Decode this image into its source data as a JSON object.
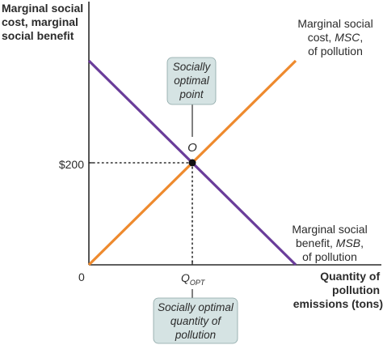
{
  "chart_data": {
    "type": "line",
    "ylabel": [
      "Marginal social",
      "cost, marginal",
      "social benefit"
    ],
    "xlabel": [
      "Quantity of",
      "pollution",
      "emissions (tons)"
    ],
    "origin_label": "0",
    "y_tick_label": "$200",
    "y_tick_value": 200,
    "x_tick_label_main": "Q",
    "x_tick_label_sub": "OPT",
    "x_opt_fraction": 0.5,
    "xlim": [
      0,
      1
    ],
    "ylim": [
      0,
      400
    ],
    "series": [
      {
        "key": "msc",
        "color": "#ee8a2e",
        "points": [
          [
            0,
            0
          ],
          [
            1,
            400
          ]
        ],
        "label": [
          [
            {
              "t": "Marginal social",
              "i": false
            }
          ],
          [
            {
              "t": "cost, ",
              "i": false
            },
            {
              "t": "MSC",
              "i": true
            },
            {
              "t": ",",
              "i": false
            }
          ],
          [
            {
              "t": "of pollution",
              "i": false
            }
          ]
        ]
      },
      {
        "key": "msb",
        "color": "#6a3d9a",
        "points": [
          [
            0,
            400
          ],
          [
            1,
            0
          ]
        ],
        "label": [
          [
            {
              "t": "Marginal social",
              "i": false
            }
          ],
          [
            {
              "t": "benefit, ",
              "i": false
            },
            {
              "t": "MSB",
              "i": true
            },
            {
              "t": ",",
              "i": false
            }
          ],
          [
            {
              "t": "of pollution",
              "i": false
            }
          ]
        ]
      }
    ],
    "optimum": {
      "x": 0.5,
      "y": 200,
      "label": "O"
    },
    "callouts": {
      "point": [
        "Socially",
        "optimal",
        "point"
      ],
      "quantity": [
        "Socially optimal",
        "quantity of",
        "pollution"
      ]
    },
    "colors": {
      "axis": "#2b2b2b",
      "callout_fill": "#d5e3e3",
      "callout_border": "#8aa5a5"
    }
  }
}
